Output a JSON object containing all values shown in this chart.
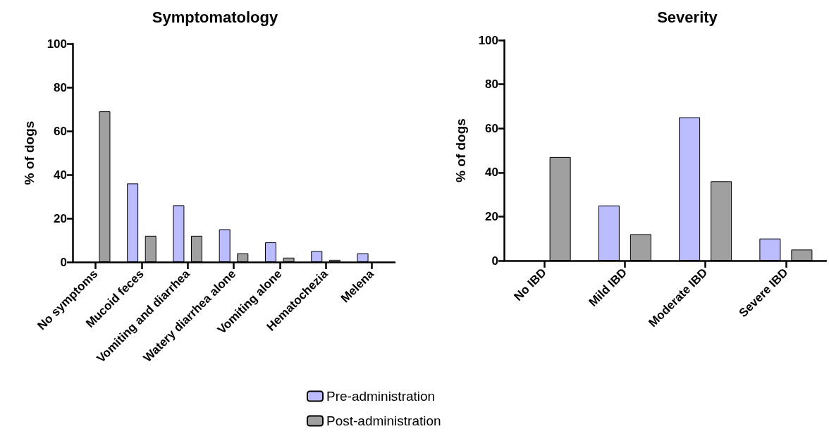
{
  "chart_data": [
    {
      "type": "bar",
      "title": "Symptomatology",
      "ylabel": "% of dogs",
      "categories": [
        "No symptoms",
        "Mucoid feces",
        "Vomiting and diarrhea",
        "Watery diarrhea alone",
        "Vomiting alone",
        "Hematochezia",
        "Melena"
      ],
      "series": [
        {
          "name": "Pre-administration",
          "color": "#bbbbff",
          "values": [
            0,
            36,
            26,
            15,
            9,
            5,
            4
          ]
        },
        {
          "name": "Post-administration",
          "color": "#a0a0a0",
          "values": [
            69,
            12,
            12,
            4,
            2,
            1,
            0
          ]
        }
      ],
      "ylim": [
        0,
        100
      ],
      "yticks": [
        0,
        20,
        40,
        60,
        80,
        100
      ],
      "grid": false,
      "legend": "bottom"
    },
    {
      "type": "bar",
      "title": "Severity",
      "ylabel": "% of dogs",
      "categories": [
        "No IBD",
        "Mild IBD",
        "Moderate IBD",
        "Severe IBD"
      ],
      "series": [
        {
          "color": "#bbbbff",
          "values": [
            0,
            25,
            65,
            10
          ]
        },
        {
          "color": "#a0a0a0",
          "values": [
            47,
            12,
            36,
            5
          ]
        }
      ],
      "ylim": [
        0,
        100
      ],
      "yticks": [
        0,
        20,
        40,
        60,
        80,
        100
      ],
      "grid": false,
      "legend": false
    }
  ]
}
